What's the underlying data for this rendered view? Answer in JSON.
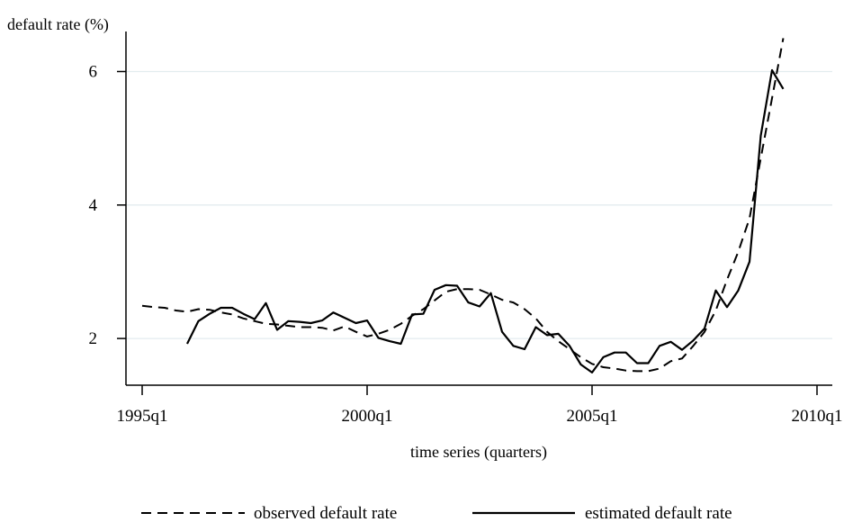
{
  "chart_data": {
    "type": "line",
    "title": "",
    "ylabel": "default rate (%)",
    "xlabel": "time series (quarters)",
    "xlim": [
      1995.0,
      2010.0
    ],
    "ylim": [
      1.3,
      6.6
    ],
    "x_ticks": [
      {
        "value": 1995.0,
        "label": "1995q1"
      },
      {
        "value": 2000.0,
        "label": "2000q1"
      },
      {
        "value": 2005.0,
        "label": "2005q1"
      },
      {
        "value": 2010.0,
        "label": "2010q1"
      }
    ],
    "y_ticks": [
      {
        "value": 2,
        "label": "2"
      },
      {
        "value": 4,
        "label": "4"
      },
      {
        "value": 6,
        "label": "6"
      }
    ],
    "grid": "horizontal",
    "legend_position": "bottom",
    "series": [
      {
        "name": "observed default rate",
        "style": "dashed",
        "color": "#000000",
        "x": [
          1995.0,
          1995.25,
          1995.5,
          1995.75,
          1996.0,
          1996.25,
          1996.5,
          1996.75,
          1997.0,
          1997.25,
          1997.5,
          1997.75,
          1998.0,
          1998.25,
          1998.5,
          1998.75,
          1999.0,
          1999.25,
          1999.5,
          1999.75,
          2000.0,
          2000.25,
          2000.5,
          2000.75,
          2001.0,
          2001.25,
          2001.5,
          2001.75,
          2002.0,
          2002.25,
          2002.5,
          2002.75,
          2003.0,
          2003.25,
          2003.5,
          2003.75,
          2004.0,
          2004.25,
          2004.5,
          2004.75,
          2005.0,
          2005.25,
          2005.5,
          2005.75,
          2006.0,
          2006.25,
          2006.5,
          2006.75,
          2007.0,
          2007.25,
          2007.5,
          2007.75,
          2008.0,
          2008.25,
          2008.5,
          2008.75,
          2009.0,
          2009.25
        ],
        "y": [
          2.49,
          2.47,
          2.46,
          2.42,
          2.4,
          2.44,
          2.43,
          2.39,
          2.36,
          2.3,
          2.26,
          2.22,
          2.21,
          2.19,
          2.17,
          2.17,
          2.16,
          2.12,
          2.18,
          2.1,
          2.03,
          2.07,
          2.13,
          2.22,
          2.34,
          2.44,
          2.57,
          2.7,
          2.74,
          2.74,
          2.73,
          2.66,
          2.58,
          2.54,
          2.44,
          2.3,
          2.1,
          1.96,
          1.84,
          1.72,
          1.62,
          1.57,
          1.55,
          1.52,
          1.51,
          1.51,
          1.55,
          1.66,
          1.7,
          1.89,
          2.1,
          2.42,
          2.88,
          3.3,
          3.8,
          4.7,
          5.6,
          6.5
        ]
      },
      {
        "name": "estimated default rate",
        "style": "solid",
        "color": "#000000",
        "x": [
          1996.0,
          1996.25,
          1996.5,
          1996.75,
          1997.0,
          1997.25,
          1997.5,
          1997.75,
          1998.0,
          1998.25,
          1998.5,
          1998.75,
          1999.0,
          1999.25,
          1999.5,
          1999.75,
          2000.0,
          2000.25,
          2000.5,
          2000.75,
          2001.0,
          2001.25,
          2001.5,
          2001.75,
          2002.0,
          2002.25,
          2002.5,
          2002.75,
          2003.0,
          2003.25,
          2003.5,
          2003.75,
          2004.0,
          2004.25,
          2004.5,
          2004.75,
          2005.0,
          2005.25,
          2005.5,
          2005.75,
          2006.0,
          2006.25,
          2006.5,
          2006.75,
          2007.0,
          2007.25,
          2007.5,
          2007.75,
          2008.0,
          2008.25,
          2008.5,
          2008.75,
          2009.0,
          2009.25
        ],
        "y": [
          1.92,
          2.26,
          2.37,
          2.46,
          2.46,
          2.37,
          2.29,
          2.53,
          2.13,
          2.26,
          2.25,
          2.23,
          2.27,
          2.39,
          2.31,
          2.23,
          2.27,
          2.01,
          1.96,
          1.92,
          2.36,
          2.37,
          2.73,
          2.8,
          2.79,
          2.54,
          2.48,
          2.68,
          2.1,
          1.89,
          1.84,
          2.17,
          2.05,
          2.07,
          1.89,
          1.61,
          1.49,
          1.72,
          1.79,
          1.79,
          1.63,
          1.63,
          1.89,
          1.95,
          1.83,
          1.97,
          2.15,
          2.72,
          2.47,
          2.72,
          3.15,
          5.04,
          6.02,
          5.74
        ]
      }
    ]
  }
}
